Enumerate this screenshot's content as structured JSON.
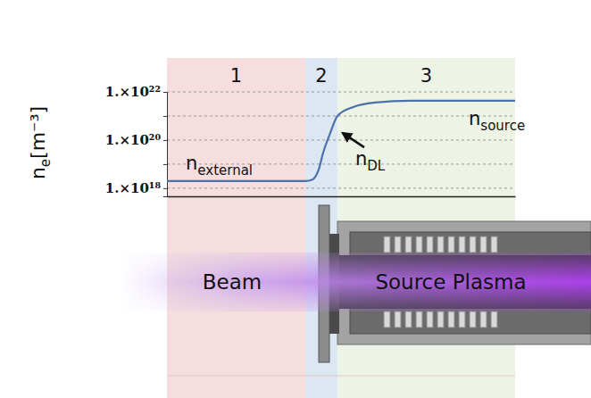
{
  "chart_data": {
    "type": "line",
    "ylabel": {
      "text": "n",
      "subscript": "e",
      "suffix": "[m⁻³]"
    },
    "x": [
      0,
      155,
      163,
      170,
      175,
      183,
      191,
      208,
      233,
      273,
      330,
      390
    ],
    "values": [
      2e+18,
      2e+18,
      2.3e+18,
      6e+18,
      3e+19,
      2e+20,
      1e+21,
      2.3e+21,
      3.6e+21,
      4.3e+21,
      4.3e+21,
      4.3e+21
    ],
    "color": "#4a72a8",
    "log": "y",
    "grid": true,
    "tick_labels": "y",
    "xlim": [
      0,
      390
    ],
    "ylim": [
      4.6e+17,
      1e+22
    ],
    "yticks": [
      {
        "value": 1e+18,
        "label": "1.×10¹⁸"
      },
      {
        "value": 1e+19,
        "label": null
      },
      {
        "value": 1e+20,
        "label": "1.×10²⁰"
      },
      {
        "value": 1e+21,
        "label": null
      },
      {
        "value": 1e+22,
        "label": "1.×10²²"
      }
    ],
    "regions": [
      {
        "label": "1",
        "start": 0,
        "end": 155
      },
      {
        "label": "2",
        "start": 155,
        "end": 191
      },
      {
        "label": "3",
        "start": 191,
        "end": 390
      }
    ],
    "annotations": [
      {
        "text": "n",
        "subscript": "external",
        "x": 21,
        "y": 6e+18,
        "arrow": false
      },
      {
        "text": "n",
        "subscript": "DL",
        "x": 211,
        "y": 9e+18,
        "arrow": true
      },
      {
        "text": "n",
        "subscript": "source",
        "x": 338,
        "y": 4.3e+20,
        "arrow": false
      }
    ],
    "schematic_labels": [
      "Beam",
      "Source Plasma"
    ]
  }
}
